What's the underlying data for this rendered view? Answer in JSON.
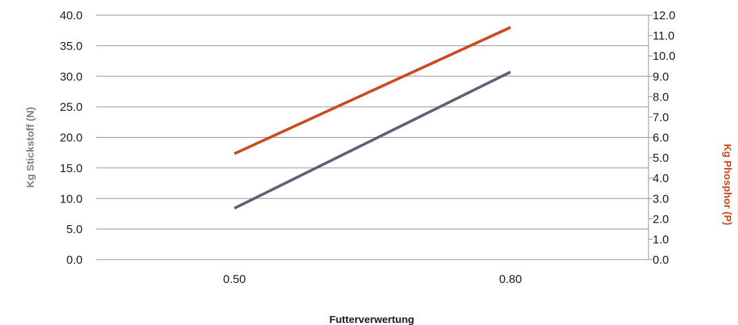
{
  "chart_data": {
    "type": "line",
    "categories": [
      "0.50",
      "0.80"
    ],
    "xlabel": "Futterverwertung",
    "ylabel_left": "Kg Stickstoff (N)",
    "ylabel_right": "Kg Phosphor (P)",
    "ylim_left": [
      0,
      40
    ],
    "ylim_right": [
      0,
      12
    ],
    "yticks_left": [
      "0.0",
      "5.0",
      "10.0",
      "15.0",
      "20.0",
      "25.0",
      "30.0",
      "35.0",
      "40.0"
    ],
    "yticks_right": [
      "0.0",
      "1.0",
      "2.0",
      "3.0",
      "4.0",
      "5.0",
      "6.0",
      "7.0",
      "8.0",
      "9.0",
      "10.0",
      "11.0",
      "12.0"
    ],
    "grid": true,
    "series": [
      {
        "axis": "left",
        "color": "#5a6472",
        "values": [
          8.4,
          30.7
        ]
      },
      {
        "axis": "right",
        "color": "#cd4a20",
        "values": [
          5.2,
          11.4
        ]
      }
    ],
    "colors": {
      "left_axis_title": "#808080",
      "right_axis_title": "#cd4a20",
      "grid": "#8c8c8c"
    }
  }
}
